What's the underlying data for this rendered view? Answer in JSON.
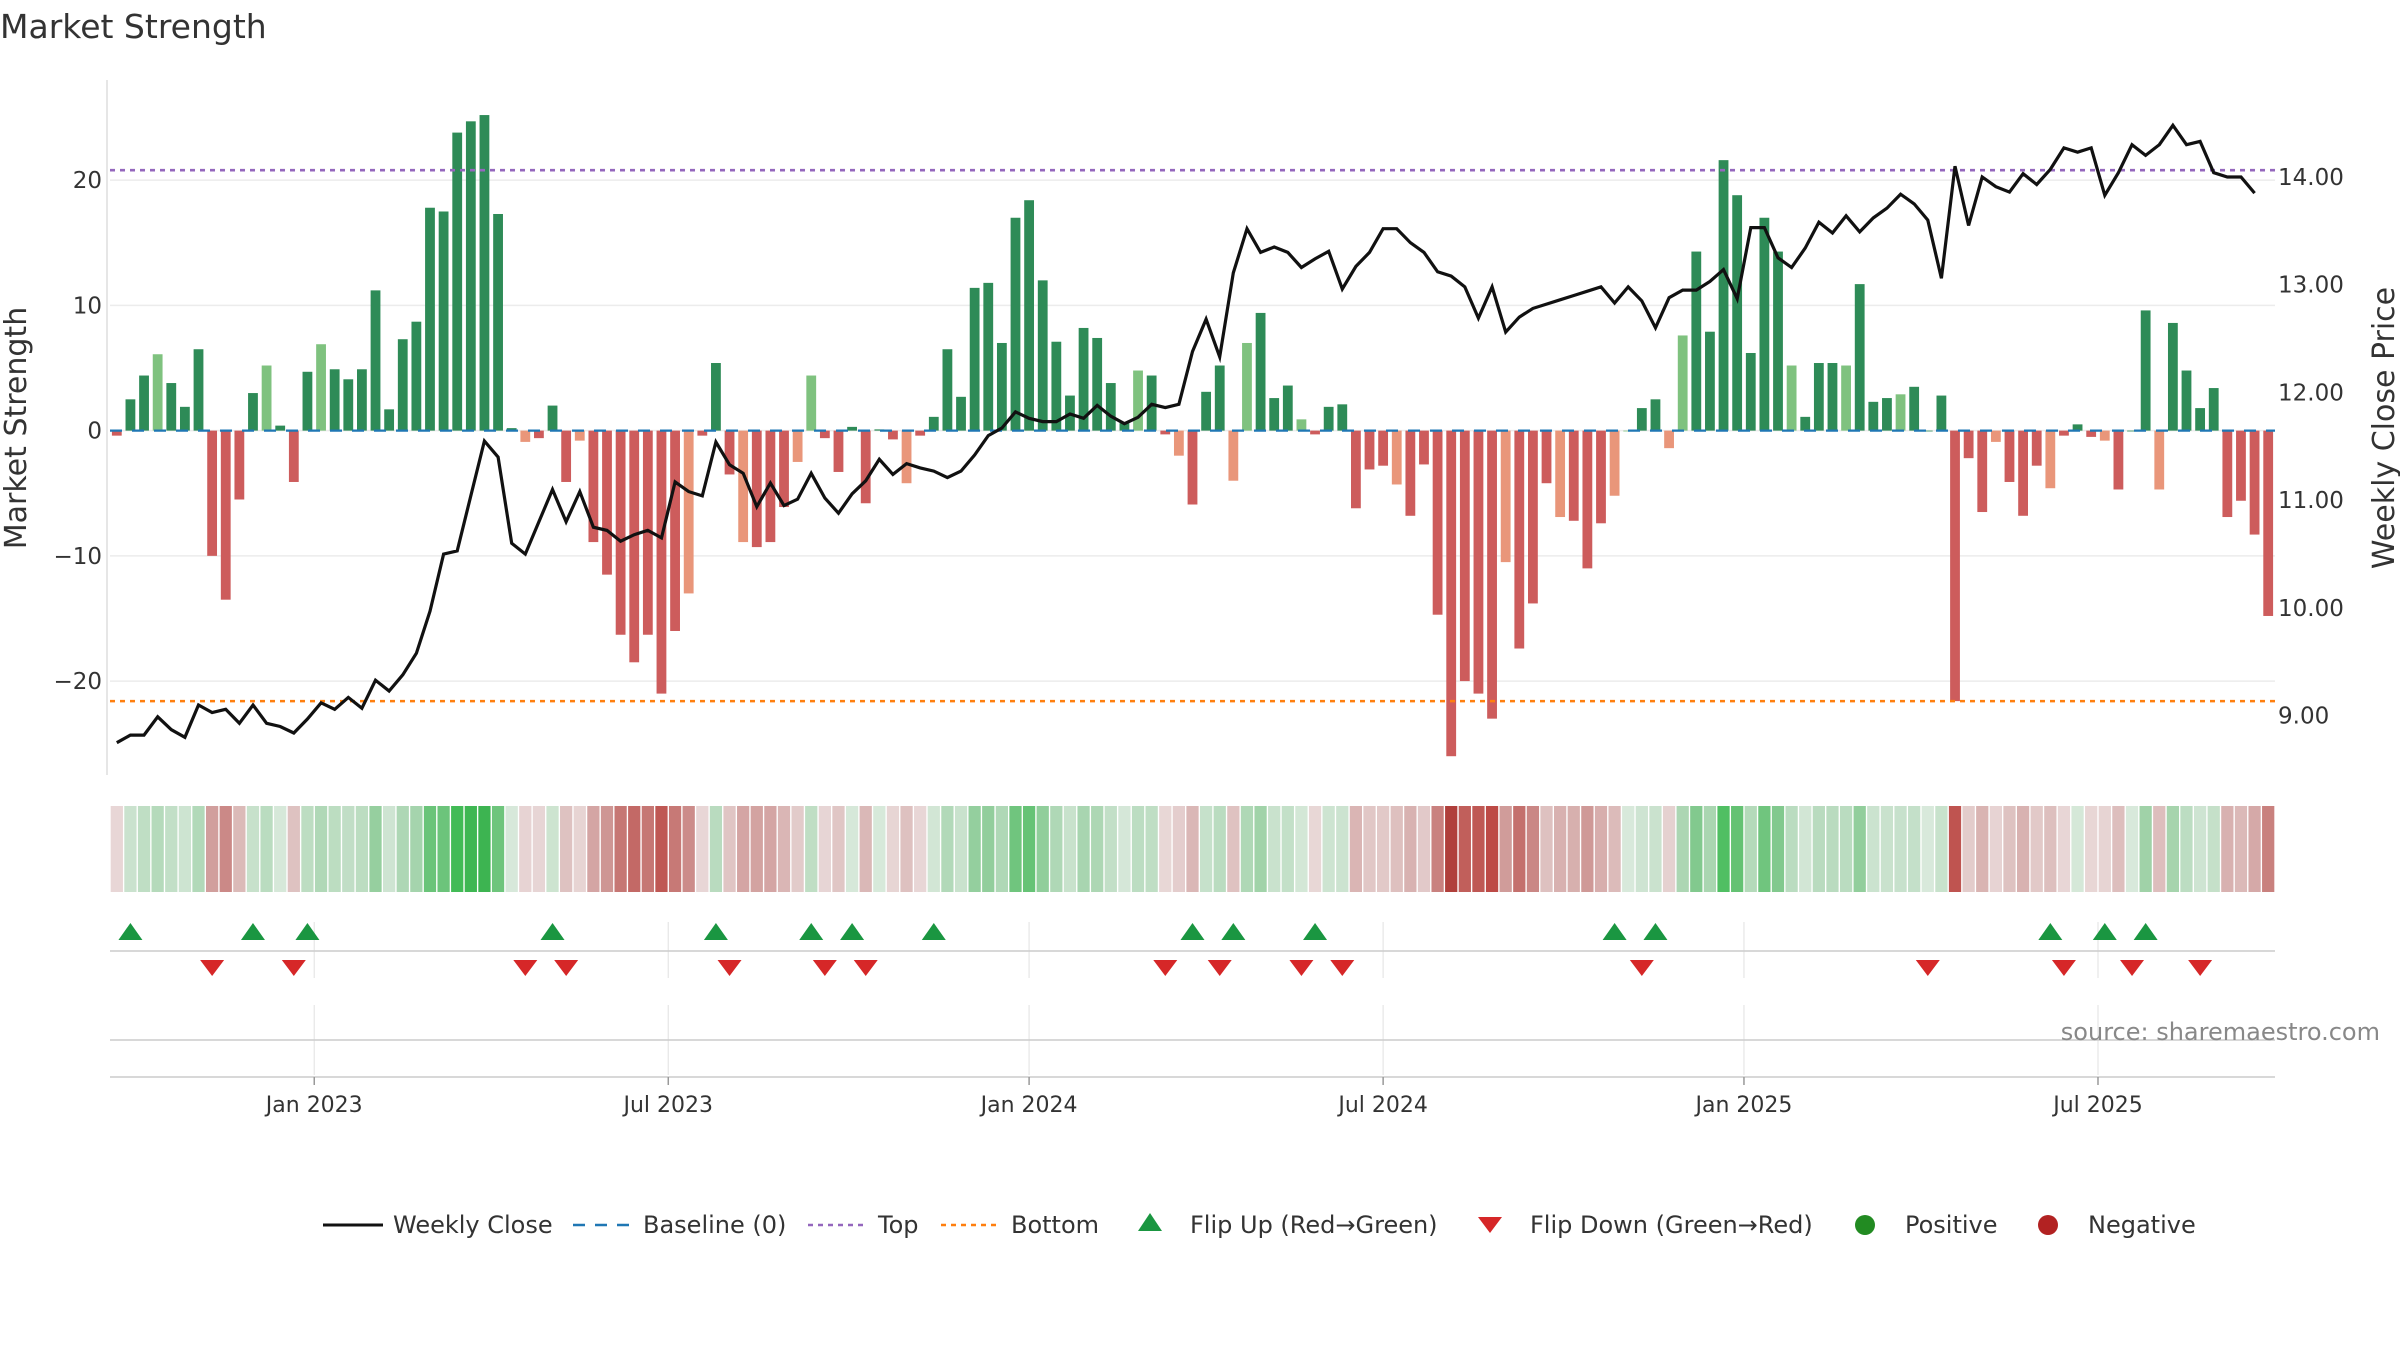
{
  "chart_data": {
    "type": "bar+line",
    "title": "Market Strength",
    "ylabel_left": "Market Strength",
    "ylabel_right": "Weekly Close Price",
    "source": "source: sharemaestro.com",
    "ylim_left": [
      -27.5,
      28
    ],
    "ylim_right": [
      8.45,
      14.9
    ],
    "left_ticks": [
      -20,
      -10,
      0,
      10,
      20
    ],
    "left_tick_labels": [
      "−20",
      "−10",
      "0",
      "10",
      "20"
    ],
    "right_ticks": [
      9,
      10,
      11,
      12,
      13,
      14
    ],
    "right_tick_labels": [
      "9.00",
      "10.00",
      "11.00",
      "12.00",
      "13.00",
      "14.00"
    ],
    "top_line": 20.8,
    "bottom_line": -21.6,
    "x_week_range": [
      0,
      157
    ],
    "date_ticks": [
      {
        "label": "Jan 2023",
        "week": 15
      },
      {
        "label": "Jul 2023",
        "week": 41
      },
      {
        "label": "Jan 2024",
        "week": 67.5
      },
      {
        "label": "Jul 2024",
        "week": 93.5
      },
      {
        "label": "Jan 2025",
        "week": 120
      },
      {
        "label": "Jul 2025",
        "week": 146
      }
    ],
    "strength": [
      -0.4,
      2.5,
      4.4,
      6.1,
      3.8,
      1.9,
      6.5,
      -10,
      -13.5,
      -5.5,
      3,
      5.2,
      0.4,
      -4.1,
      4.7,
      6.9,
      4.9,
      4.1,
      4.9,
      11.2,
      1.7,
      7.3,
      8.7,
      17.8,
      17.5,
      23.8,
      24.7,
      25.2,
      17.3,
      0.2,
      -0.9,
      -0.6,
      2,
      -4.1,
      -0.8,
      -8.9,
      -11.5,
      -16.3,
      -18.5,
      -16.3,
      -21,
      -16,
      -13,
      -0.4,
      5.4,
      -3.5,
      -8.9,
      -9.3,
      -8.9,
      -6.1,
      -2.5,
      4.4,
      -0.6,
      -3.3,
      0.3,
      -5.8,
      0.1,
      -0.7,
      -4.2,
      -0.4,
      1.1,
      6.5,
      2.7,
      11.4,
      11.8,
      7,
      17,
      18.4,
      12,
      7.1,
      2.8,
      8.2,
      7.4,
      3.8,
      0.6,
      4.8,
      4.4,
      -0.3,
      -2,
      -5.9,
      3.1,
      5.2,
      -4,
      7,
      9.4,
      2.6,
      3.6,
      0.9,
      -0.3,
      1.9,
      2.1,
      -6.2,
      -3.1,
      -2.8,
      -4.3,
      -6.8,
      -2.7,
      -14.7,
      -26,
      -20,
      -21,
      -23,
      -10.5,
      -17.4,
      -13.8,
      -4.2,
      -6.9,
      -7.2,
      -11,
      -7.4,
      -5.2,
      0,
      1.8,
      2.5,
      -1.4,
      7.6,
      14.3,
      7.9,
      21.6,
      18.8,
      6.2,
      17,
      14.3,
      5.2,
      1.1,
      5.4,
      5.4,
      5.2,
      11.7,
      2.3,
      2.6,
      2.9,
      3.5,
      0,
      2.8,
      -21.6,
      -2.2,
      -6.5,
      -0.9,
      -4.1,
      -6.8,
      -2.8,
      -4.6,
      -0.4,
      0.5,
      -0.5,
      -0.8,
      -4.7,
      0,
      9.6,
      -4.7,
      8.6,
      4.8,
      1.8,
      3.4,
      -6.9,
      -5.6,
      -8.3,
      -14.8
    ],
    "close": [
      8.75,
      8.82,
      8.82,
      8.99,
      8.87,
      8.8,
      9.1,
      9.03,
      9.06,
      8.93,
      9.1,
      8.93,
      8.9,
      8.84,
      8.97,
      9.12,
      9.06,
      9.17,
      9.07,
      9.33,
      9.23,
      9.38,
      9.58,
      9.97,
      10.5,
      10.53,
      11.04,
      11.55,
      11.4,
      10.6,
      10.5,
      10.8,
      11.1,
      10.8,
      11.08,
      10.75,
      10.72,
      10.62,
      10.68,
      10.72,
      10.65,
      11.17,
      11.08,
      11.04,
      11.54,
      11.33,
      11.25,
      10.94,
      11.16,
      10.95,
      11.01,
      11.25,
      11.02,
      10.88,
      11.06,
      11.18,
      11.38,
      11.24,
      11.34,
      11.3,
      11.27,
      11.21,
      11.27,
      11.42,
      11.6,
      11.67,
      11.82,
      11.76,
      11.73,
      11.73,
      11.8,
      11.76,
      11.88,
      11.78,
      11.71,
      11.77,
      11.89,
      11.86,
      11.89,
      12.38,
      12.68,
      12.33,
      13.11,
      13.52,
      13.3,
      13.35,
      13.3,
      13.16,
      13.24,
      13.31,
      12.96,
      13.17,
      13.3,
      13.52,
      13.52,
      13.39,
      13.3,
      13.12,
      13.08,
      12.98,
      12.69,
      12.98,
      12.56,
      12.7,
      12.78,
      12.82,
      12.86,
      12.9,
      12.94,
      12.98,
      12.83,
      12.98,
      12.85,
      12.6,
      12.88,
      12.95,
      12.95,
      13.03,
      13.14,
      12.87,
      13.53,
      13.53,
      13.25,
      13.16,
      13.34,
      13.58,
      13.48,
      13.64,
      13.49,
      13.62,
      13.71,
      13.84,
      13.75,
      13.6,
      13.06,
      14.1,
      13.55,
      14,
      13.91,
      13.86,
      14.03,
      13.93,
      14.07,
      14.27,
      14.23,
      14.27,
      13.83,
      14.04,
      14.3,
      14.2,
      14.3,
      14.48,
      14.3,
      14.33,
      14.04,
      14,
      14,
      13.85
    ],
    "flip_up_weeks": [
      1,
      10,
      14,
      32,
      44,
      51,
      54,
      60,
      79,
      82,
      88,
      110,
      113,
      142,
      146,
      149
    ],
    "flip_down_weeks": [
      7,
      13,
      30,
      33,
      45,
      52,
      55,
      77,
      81,
      87,
      90,
      112,
      133,
      143,
      148,
      153
    ],
    "legend": [
      "Weekly Close",
      "Baseline (0)",
      "Top",
      "Bottom",
      "Flip Up (Red→Green)",
      "Flip Down (Green→Red)",
      "Positive",
      "Negative"
    ]
  },
  "colors": {
    "pos_strong": "#2e8b57",
    "pos_light": "#7fc27f",
    "neg_strong": "#cd5c5c",
    "neg_light": "#e9967a",
    "close_line": "#111111",
    "baseline": "#1f77b4",
    "top_line": "#9467bd",
    "bottom_line": "#ff7f0e",
    "flip_up": "#1a9641",
    "flip_down": "#d62728",
    "positive_dot": "#228b22",
    "negative_dot": "#b22222"
  }
}
